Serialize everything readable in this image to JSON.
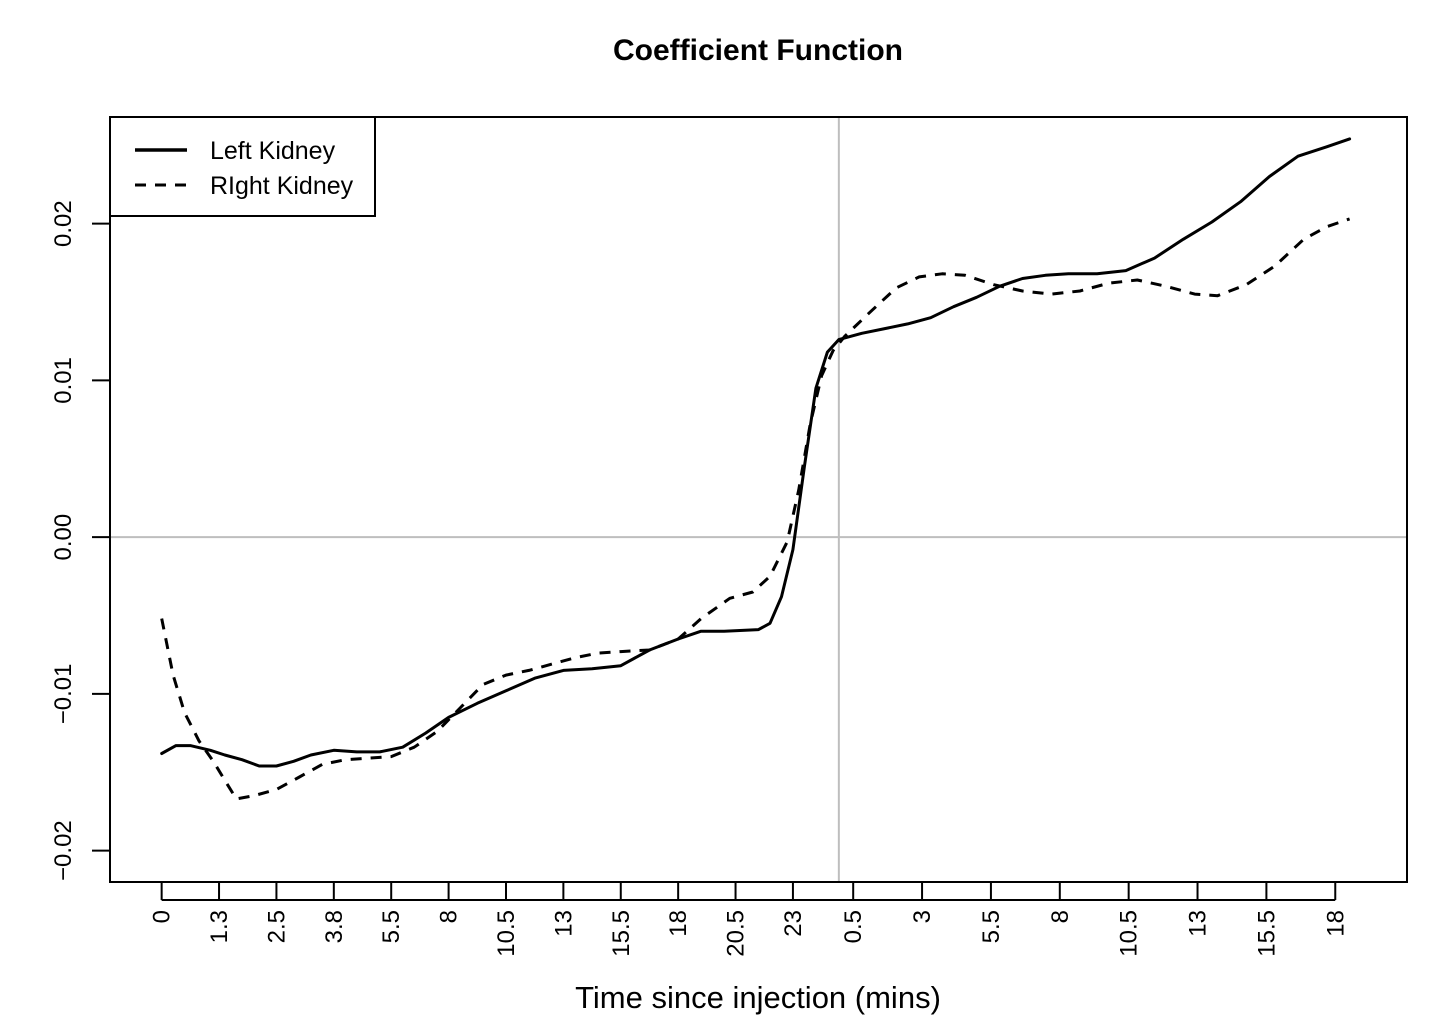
{
  "chart_data": {
    "type": "line",
    "title": "Coefficient Function",
    "xlabel": "Time since injection (mins)",
    "ylabel": "",
    "ylim": [
      -0.022,
      0.0268
    ],
    "y_ticks": [
      {
        "value": -0.02,
        "label": "−0.02"
      },
      {
        "value": -0.01,
        "label": "−0.01"
      },
      {
        "value": 0.0,
        "label": "0.00"
      },
      {
        "value": 0.01,
        "label": "0.01"
      },
      {
        "value": 0.02,
        "label": "0.02"
      }
    ],
    "x_range": [
      -0.9,
      21.7
    ],
    "x_ticks": [
      {
        "value": 0,
        "label": "0"
      },
      {
        "value": 1,
        "label": "1.3"
      },
      {
        "value": 2,
        "label": "2.5"
      },
      {
        "value": 3,
        "label": "3.8"
      },
      {
        "value": 4,
        "label": "5.5"
      },
      {
        "value": 5,
        "label": "8"
      },
      {
        "value": 6,
        "label": "10.5"
      },
      {
        "value": 7,
        "label": "13"
      },
      {
        "value": 8,
        "label": "15.5"
      },
      {
        "value": 9,
        "label": "18"
      },
      {
        "value": 10,
        "label": "20.5"
      },
      {
        "value": 11,
        "label": "23"
      },
      {
        "value": 12.05,
        "label": "0.5"
      },
      {
        "value": 13.25,
        "label": "3"
      },
      {
        "value": 14.45,
        "label": "5.5"
      },
      {
        "value": 15.65,
        "label": "8"
      },
      {
        "value": 16.85,
        "label": "10.5"
      },
      {
        "value": 18.05,
        "label": "13"
      },
      {
        "value": 19.25,
        "label": "15.5"
      },
      {
        "value": 20.45,
        "label": "18"
      }
    ],
    "reference_lines": {
      "h": 0.0,
      "v": 11.8
    },
    "legend": {
      "position": "top-left"
    },
    "grid": false,
    "series": [
      {
        "name": "Left Kidney",
        "style": "solid",
        "points": [
          [
            0,
            -0.0138
          ],
          [
            0.25,
            -0.0133
          ],
          [
            0.5,
            -0.0133
          ],
          [
            0.85,
            -0.0136
          ],
          [
            1.1,
            -0.0139
          ],
          [
            1.4,
            -0.0142
          ],
          [
            1.7,
            -0.0146
          ],
          [
            2.0,
            -0.0146
          ],
          [
            2.3,
            -0.0143
          ],
          [
            2.6,
            -0.0139
          ],
          [
            3.0,
            -0.0136
          ],
          [
            3.4,
            -0.0137
          ],
          [
            3.8,
            -0.0137
          ],
          [
            4.2,
            -0.0134
          ],
          [
            4.6,
            -0.0125
          ],
          [
            5.0,
            -0.0115
          ],
          [
            5.5,
            -0.0106
          ],
          [
            6.0,
            -0.0098
          ],
          [
            6.5,
            -0.009
          ],
          [
            7.0,
            -0.0085
          ],
          [
            7.5,
            -0.0084
          ],
          [
            8.0,
            -0.0082
          ],
          [
            8.5,
            -0.0072
          ],
          [
            9.0,
            -0.0065
          ],
          [
            9.4,
            -0.006
          ],
          [
            9.8,
            -0.006
          ],
          [
            10.4,
            -0.0059
          ],
          [
            10.6,
            -0.0055
          ],
          [
            10.8,
            -0.0038
          ],
          [
            11.0,
            -0.0008
          ],
          [
            11.2,
            0.0045
          ],
          [
            11.4,
            0.0095
          ],
          [
            11.6,
            0.0118
          ],
          [
            11.8,
            0.0126
          ],
          [
            12.2,
            0.013
          ],
          [
            12.6,
            0.0133
          ],
          [
            13.0,
            0.0136
          ],
          [
            13.4,
            0.014
          ],
          [
            13.8,
            0.0147
          ],
          [
            14.2,
            0.0153
          ],
          [
            14.6,
            0.016
          ],
          [
            15.0,
            0.0165
          ],
          [
            15.4,
            0.0167
          ],
          [
            15.8,
            0.0168
          ],
          [
            16.3,
            0.0168
          ],
          [
            16.8,
            0.017
          ],
          [
            17.3,
            0.0178
          ],
          [
            17.8,
            0.019
          ],
          [
            18.3,
            0.0201
          ],
          [
            18.8,
            0.0214
          ],
          [
            19.3,
            0.023
          ],
          [
            19.8,
            0.0243
          ],
          [
            20.3,
            0.0249
          ],
          [
            20.7,
            0.0254
          ]
        ]
      },
      {
        "name": "RIght Kidney",
        "style": "dashed",
        "points": [
          [
            0,
            -0.0052
          ],
          [
            0.2,
            -0.0088
          ],
          [
            0.4,
            -0.0112
          ],
          [
            0.65,
            -0.013
          ],
          [
            0.9,
            -0.0143
          ],
          [
            1.15,
            -0.0158
          ],
          [
            1.3,
            -0.0167
          ],
          [
            1.6,
            -0.0165
          ],
          [
            2.0,
            -0.0161
          ],
          [
            2.4,
            -0.0153
          ],
          [
            2.8,
            -0.0145
          ],
          [
            3.2,
            -0.0142
          ],
          [
            3.6,
            -0.0141
          ],
          [
            4.0,
            -0.014
          ],
          [
            4.4,
            -0.0134
          ],
          [
            4.8,
            -0.0124
          ],
          [
            5.2,
            -0.0109
          ],
          [
            5.6,
            -0.0094
          ],
          [
            6.0,
            -0.0088
          ],
          [
            6.4,
            -0.0085
          ],
          [
            6.8,
            -0.0081
          ],
          [
            7.2,
            -0.0077
          ],
          [
            7.6,
            -0.0074
          ],
          [
            8.0,
            -0.0073
          ],
          [
            8.5,
            -0.0072
          ],
          [
            9.0,
            -0.0065
          ],
          [
            9.4,
            -0.0052
          ],
          [
            9.9,
            -0.0039
          ],
          [
            10.3,
            -0.0035
          ],
          [
            10.6,
            -0.0025
          ],
          [
            10.9,
            -0.0003
          ],
          [
            11.1,
            0.003
          ],
          [
            11.3,
            0.0072
          ],
          [
            11.5,
            0.0103
          ],
          [
            11.7,
            0.0119
          ],
          [
            11.9,
            0.0128
          ],
          [
            12.3,
            0.0142
          ],
          [
            12.8,
            0.0159
          ],
          [
            13.2,
            0.0166
          ],
          [
            13.6,
            0.0168
          ],
          [
            14.0,
            0.0167
          ],
          [
            14.5,
            0.0161
          ],
          [
            15.0,
            0.0157
          ],
          [
            15.5,
            0.0155
          ],
          [
            16.0,
            0.0157
          ],
          [
            16.5,
            0.0162
          ],
          [
            17.0,
            0.0164
          ],
          [
            17.5,
            0.016
          ],
          [
            18.0,
            0.0155
          ],
          [
            18.4,
            0.0154
          ],
          [
            18.9,
            0.0161
          ],
          [
            19.4,
            0.0173
          ],
          [
            19.9,
            0.019
          ],
          [
            20.3,
            0.0198
          ],
          [
            20.7,
            0.0203
          ]
        ]
      }
    ]
  }
}
